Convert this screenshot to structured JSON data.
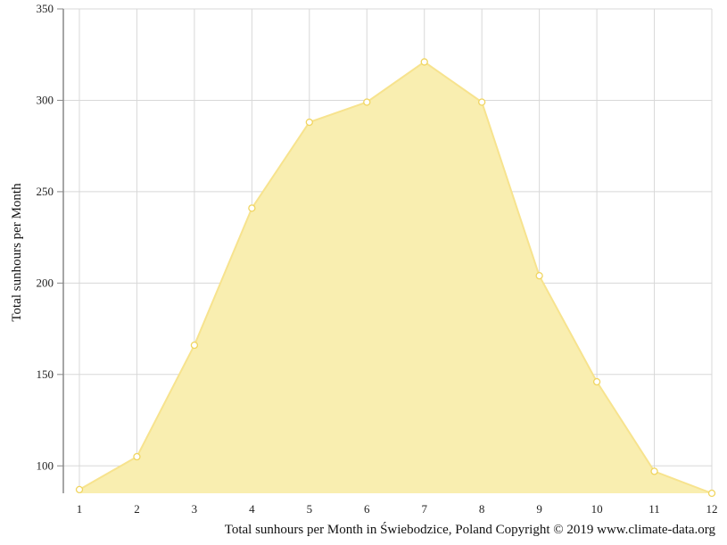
{
  "chart_data": {
    "type": "area",
    "x": [
      1,
      2,
      3,
      4,
      5,
      6,
      7,
      8,
      9,
      10,
      11,
      12
    ],
    "series": [
      {
        "values": [
          87,
          105,
          166,
          241,
          288,
          299,
          321,
          299,
          204,
          146,
          97,
          85
        ]
      }
    ],
    "ylabel": "Total sunhours per Month",
    "caption": "Total sunhours per Month in Świebodzice, Poland Copyright © 2019 www.climate-data.org",
    "xlim": [
      1,
      12
    ],
    "ylim": [
      85,
      350
    ],
    "y_ticks": [
      100,
      150,
      200,
      250,
      300,
      350
    ],
    "x_ticks": [
      1,
      2,
      3,
      4,
      5,
      6,
      7,
      8,
      9,
      10,
      11,
      12
    ],
    "grid": true,
    "colors": {
      "fill": "#f9eeb0",
      "line": "#f7e38e",
      "marker_fill": "#ffffff",
      "marker_stroke": "#f0d560",
      "grid": "#d8d8d8",
      "axis": "#888888"
    }
  }
}
